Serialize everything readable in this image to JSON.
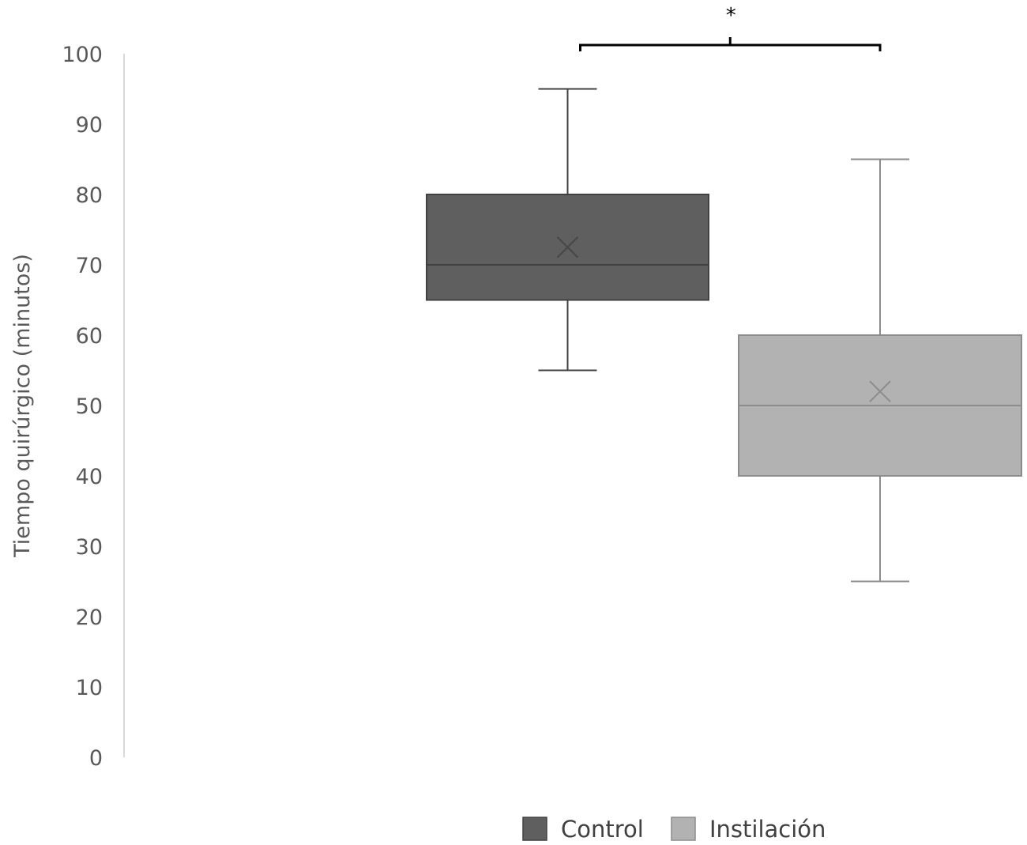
{
  "chart_data": {
    "type": "box",
    "title": "",
    "xlabel": "",
    "ylabel": "Tiempo quirúrgico (minutos)",
    "ylim": [
      0,
      100
    ],
    "yticks": [
      0,
      10,
      20,
      30,
      40,
      50,
      60,
      70,
      80,
      90,
      100
    ],
    "grid": false,
    "legend_position": "bottom",
    "series": [
      {
        "name": "Control",
        "color": "#5f5f5f",
        "edge_color": "#404040",
        "min": 55,
        "q1": 65,
        "median": 70,
        "q3": 80,
        "max": 95,
        "mean": 72.5
      },
      {
        "name": "Instilación",
        "color": "#b2b2b2",
        "edge_color": "#8c8c8c",
        "min": 25,
        "q1": 40,
        "median": 50,
        "q3": 60,
        "max": 85,
        "mean": 52
      }
    ],
    "significance": {
      "label": "*",
      "between": [
        "Control",
        "Instilación"
      ]
    }
  }
}
